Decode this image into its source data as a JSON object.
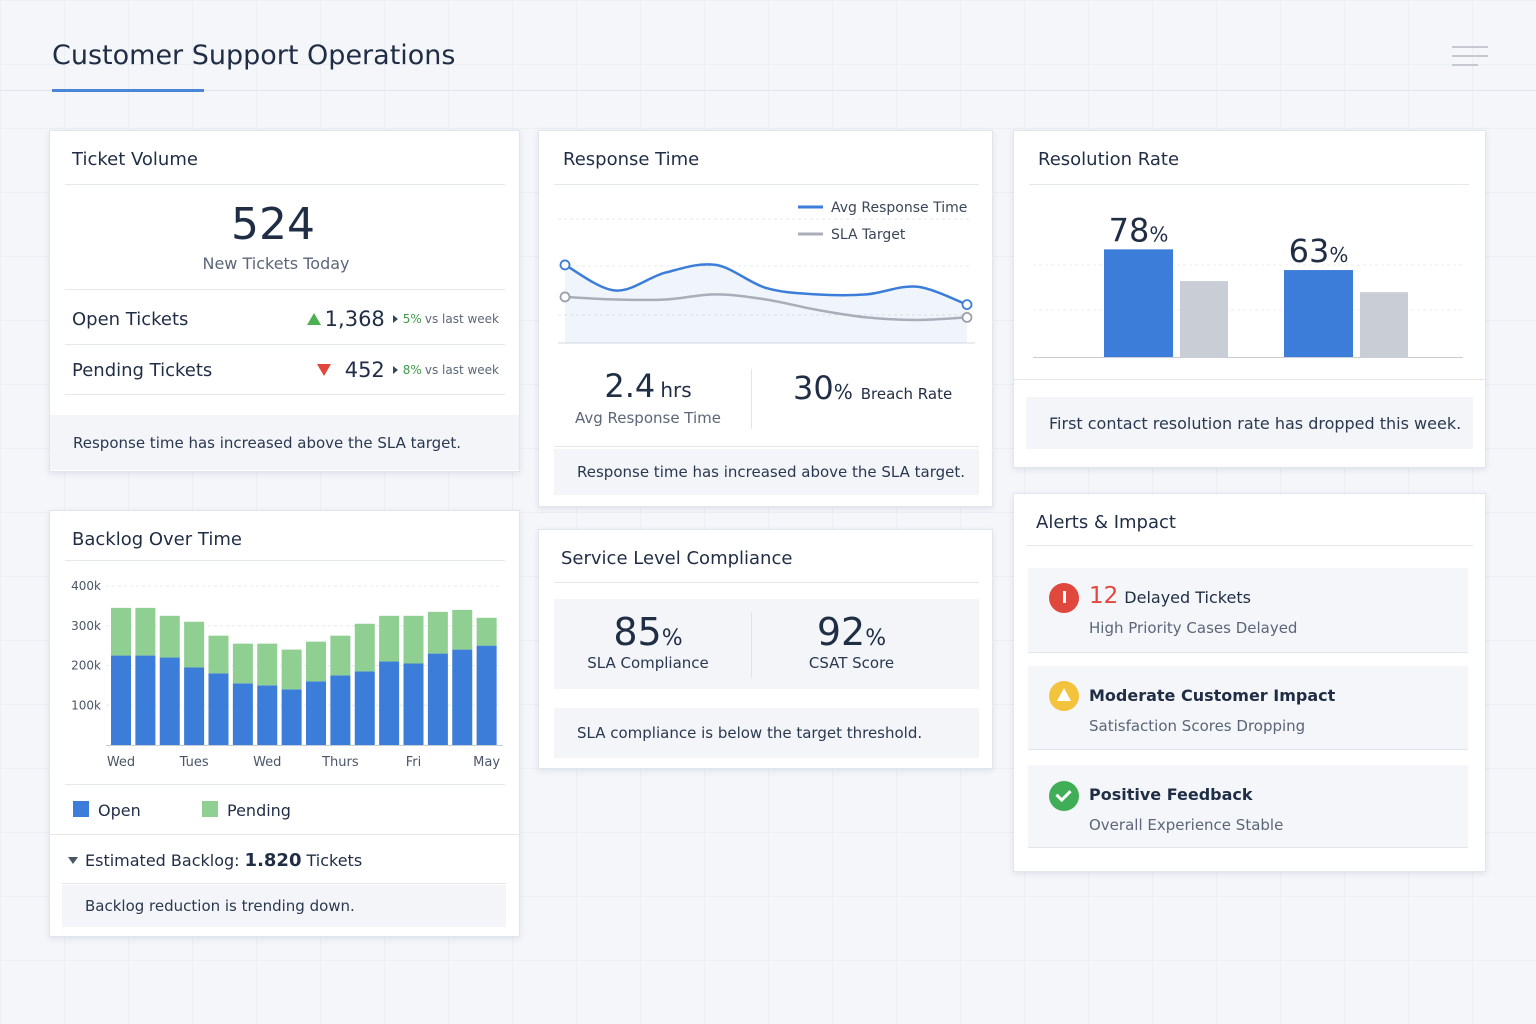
{
  "header": {
    "title": "Customer Support Operations"
  },
  "ticket_volume": {
    "title": "Ticket Volume",
    "value": 524,
    "caption": "New Tickets Today",
    "rows": [
      {
        "label": "Open Tickets",
        "value": "1,368",
        "change": "5%",
        "comparison": "vs last week"
      },
      {
        "label": "Pending Tickets",
        "value": 452,
        "change": "8%",
        "comparison": "vs last week"
      }
    ],
    "note": "Response time has increased above the SLA target."
  },
  "response_time": {
    "title": "Response Time",
    "chart": {
      "type": "line",
      "ylim": [
        0,
        100
      ],
      "series": [
        {
          "name": "Avg Response Time",
          "color": "#3b7dd8",
          "values": [
            61,
            41,
            55,
            61,
            43,
            38,
            38,
            44,
            30
          ]
        },
        {
          "name": "SLA Target",
          "color": "#a9aeb9",
          "values": [
            36,
            34,
            34,
            38,
            34,
            26,
            20,
            18,
            20
          ]
        }
      ]
    },
    "stats": [
      {
        "value": 2.4,
        "unit": "hrs",
        "label": "Avg Response Time"
      },
      {
        "value": 30,
        "unit": "%",
        "label": "Breach Rate"
      }
    ],
    "note": "Response time has increased above the SLA target."
  },
  "resolution_rate": {
    "title": "Resolution Rate",
    "chart": {
      "type": "bar",
      "ylim": [
        0,
        100
      ],
      "unit": "%",
      "series": [
        {
          "color": "#3b7dd8",
          "values": [
            78,
            63
          ]
        },
        {
          "color": "#c8cdd6",
          "values": [
            55,
            47
          ]
        }
      ]
    },
    "note": "First contact resolution rate has dropped this week."
  },
  "service_level": {
    "title": "Service Level Compliance",
    "stats": [
      {
        "value": 85,
        "unit": "%",
        "label": "SLA Compliance"
      },
      {
        "value": 92,
        "unit": "%",
        "label": "CSAT Score"
      }
    ],
    "note": "SLA compliance is below the target threshold."
  },
  "alerts": {
    "title": "Alerts & Impact",
    "items": [
      {
        "count": 12,
        "title": "Delayed Tickets",
        "detail": "High Priority Cases Delayed"
      },
      {
        "title": "Moderate Customer Impact",
        "detail": "Satisfaction Scores Dropping"
      },
      {
        "title": "Positive Feedback",
        "detail": "Overall Experience Stable"
      }
    ]
  },
  "backlog": {
    "title": "Backlog Over Time",
    "chart": {
      "type": "stacked_bar",
      "grid": true,
      "categories": [
        "Wed",
        null,
        null,
        "Tues",
        null,
        null,
        "Wed",
        null,
        null,
        "Thurs",
        null,
        null,
        "Fri",
        null,
        null,
        "May"
      ],
      "ylim": [
        0,
        400000
      ],
      "yticks": [
        {
          "value": 100000,
          "label": "100k"
        },
        {
          "value": 200000,
          "label": "200k"
        },
        {
          "value": 300000,
          "label": "300k"
        },
        {
          "value": 400000,
          "label": "400k"
        }
      ],
      "series": [
        {
          "name": "Open",
          "color": "#3b7dd8",
          "values": [
            225000,
            225000,
            220000,
            195000,
            180000,
            155000,
            150000,
            140000,
            160000,
            175000,
            185000,
            210000,
            205000,
            230000,
            240000,
            250000
          ]
        },
        {
          "name": "Pending",
          "color": "#8fcf92",
          "values": [
            120000,
            120000,
            105000,
            115000,
            95000,
            100000,
            105000,
            100000,
            100000,
            100000,
            120000,
            115000,
            120000,
            105000,
            100000,
            70000
          ]
        }
      ]
    },
    "estimate": {
      "label": "Estimated Backlog:",
      "value": "1.820",
      "unit": "Tickets"
    },
    "note": "Backlog reduction is trending down."
  }
}
